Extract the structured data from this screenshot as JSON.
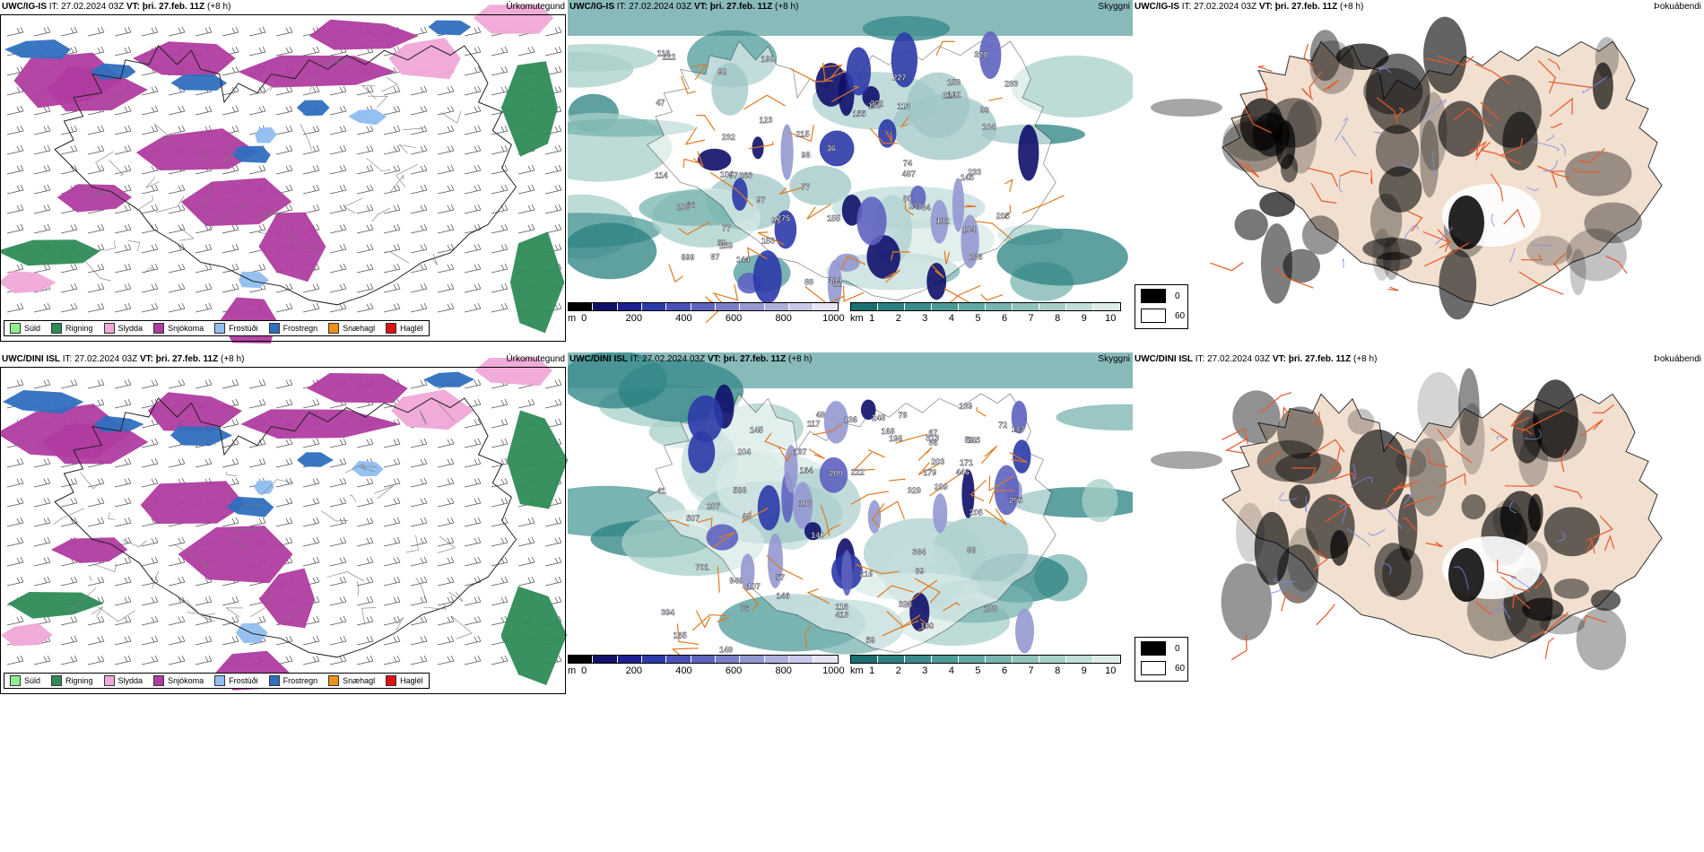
{
  "rows": [
    {
      "model": "UWC/IG-IS",
      "it_label": "IT:",
      "it_value": "27.02.2024 03Z",
      "vt_label": "VT:",
      "vt_value": "þri. 27.feb. 11Z",
      "lead": "(+8 h)",
      "titles": {
        "precip": "Úrkomutegund",
        "visibility": "Skyggni",
        "fog": "Þokuábendi"
      },
      "visibility_labels": [
        "699",
        "231",
        "202",
        "487",
        "286",
        "218",
        "190",
        "155",
        "155",
        "144",
        "145",
        "159",
        "153",
        "95",
        "222",
        "215",
        "263",
        "98",
        "153",
        "104",
        "113",
        "104",
        "74",
        "87",
        "77",
        "99",
        "104",
        "97",
        "320",
        "66",
        "102",
        "283",
        "57",
        "275",
        "62",
        "233",
        "232",
        "192",
        "88",
        "90",
        "50",
        "92",
        "77",
        "114",
        "36",
        "116",
        "150",
        "227",
        "309",
        "123",
        "106",
        "205",
        "108",
        "47",
        "84"
      ]
    },
    {
      "model": "UWC/DINI ISL",
      "it_label": "IT:",
      "it_value": "27.02.2024 03Z",
      "vt_label": "VT:",
      "vt_value": "þri. 27.feb. 11Z",
      "lead": "(+8 h)",
      "titles": {
        "precip": "Úrkomutegund",
        "visibility": "Skyggni",
        "fog": "Þokuábendi"
      },
      "visibility_labels": [
        "701",
        "413",
        "222",
        "588",
        "328",
        "187",
        "645",
        "149",
        "113",
        "107",
        "57",
        "329",
        "207",
        "209",
        "171",
        "140",
        "72",
        "67",
        "248",
        "507",
        "209",
        "255",
        "949",
        "204",
        "188",
        "196",
        "48",
        "89",
        "313",
        "203",
        "179",
        "139",
        "136",
        "111",
        "145",
        "165",
        "86",
        "146",
        "78",
        "117",
        "164",
        "100",
        "168",
        "68",
        "216",
        "384",
        "446",
        "116",
        "394",
        "205",
        "99",
        "52",
        "76",
        "41",
        "58",
        "107",
        "68"
      ]
    }
  ],
  "precip_legend": [
    {
      "label": "Súld",
      "color": "#90ee90"
    },
    {
      "label": "Rigning",
      "color": "#2e8b57"
    },
    {
      "label": "Slydda",
      "color": "#f0a8d8"
    },
    {
      "label": "Snjókoma",
      "color": "#b03ca0"
    },
    {
      "label": "Frostúði",
      "color": "#8fbef0"
    },
    {
      "label": "Frostregn",
      "color": "#2f6fbf"
    },
    {
      "label": "Snæhagl",
      "color": "#f0901c"
    },
    {
      "label": "Haglél",
      "color": "#e01010"
    }
  ],
  "height_scale": {
    "unit": "m",
    "ticks": [
      "0",
      "200",
      "400",
      "600",
      "800",
      "1000"
    ],
    "colors": [
      "#000000",
      "#10106a",
      "#1c2090",
      "#2c3aa8",
      "#4a52b8",
      "#5e63c0",
      "#7a7ec8",
      "#9498d0",
      "#aeb0dc",
      "#c8caea",
      "#e4e4f4"
    ]
  },
  "visibility_scale": {
    "unit": "km",
    "ticks": [
      "1",
      "2",
      "3",
      "4",
      "5",
      "6",
      "7",
      "8",
      "9",
      "10"
    ],
    "colors": [
      "#1a7070",
      "#2a8080",
      "#3a8c8c",
      "#4c9a98",
      "#62a8a4",
      "#78b4b0",
      "#90c2bc",
      "#a8d0ca",
      "#c2ded8",
      "#dcece8"
    ]
  },
  "fog_legend": [
    {
      "label": "0",
      "color": "#000000"
    },
    {
      "label": "60",
      "color": "#ffffff"
    }
  ]
}
